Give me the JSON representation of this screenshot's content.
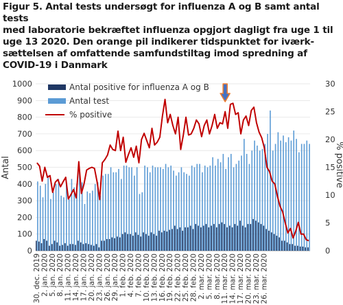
{
  "caption": "Figur 5. Antal tests  undersøgt for influenza A og B samt antal tests\nmed laboratorie bekræftet influenza opgjort dagligt fra uge 1 til\nuge 13 2020. Den orange pil indikerer tidspunktet for iværk-\nsættelsen  af omfattende samfundstiltag imod spredning af\nCOVID-19 i Danmark",
  "colors": {
    "positive_bars": "#1f3864",
    "tests_bars": "#5b9bd5",
    "pct_line": "#c00000",
    "arrow_fill": "#4472c4",
    "arrow_stroke": "#ed7d31"
  },
  "chart_data": {
    "type": "bar",
    "xlabel": "",
    "ylabel": "Antal",
    "y2label": "% positive",
    "ylim": [
      0,
      1000
    ],
    "y2lim": [
      0,
      30
    ],
    "yticks": [
      "0",
      "100",
      "200",
      "300",
      "400",
      "500",
      "600",
      "700",
      "800",
      "900",
      "1000"
    ],
    "y2ticks": [
      "0",
      "5",
      "10",
      "15",
      "20",
      "25",
      "30"
    ],
    "date_labels": [
      "30. dec. 2019",
      "2. jan. 2020",
      "5. jan. 2020",
      "8. jan. 2020",
      "11. jan. 2020",
      "14. jan. 2020",
      "17. jan. 2020",
      "20. jan. 2020",
      "23. jan. 2020",
      "26. jan. 2020",
      "29. jan. 2020",
      "1. feb. 2020",
      "4. feb. 2020",
      "7. feb. 2020",
      "10. feb. 2020",
      "13. feb. 2020",
      "16. feb. 2020",
      "19. feb. 2020",
      "22. feb. 2020",
      "25. feb. 2020",
      "28. feb. 2020",
      "2. mar. 2020",
      "5. mar. 2020",
      "8. mar. 2020",
      "11. mar. 2020",
      "14. mar. 2020",
      "17. mar. 2020",
      "20. mar. 2020",
      "23. mar. 2020",
      "26. mar. 2020"
    ],
    "legend": [
      {
        "key": "positive",
        "label": "Antal positive for influenza A og B"
      },
      {
        "key": "tests",
        "label": "Antal test"
      },
      {
        "key": "pct",
        "label": "% positive"
      }
    ],
    "arrow_label": "11. mar. 2020",
    "series": [
      {
        "name": "Antal positive for influenza A og B",
        "values": [
          60,
          55,
          45,
          70,
          60,
          30,
          40,
          60,
          50,
          30,
          35,
          45,
          30,
          40,
          40,
          35,
          60,
          50,
          40,
          45,
          40,
          35,
          30,
          40,
          20,
          60,
          60,
          70,
          70,
          80,
          75,
          85,
          80,
          100,
          110,
          100,
          100,
          90,
          110,
          95,
          85,
          110,
          100,
          90,
          110,
          100,
          90,
          120,
          110,
          120,
          115,
          125,
          130,
          150,
          130,
          140,
          120,
          140,
          140,
          150,
          130,
          160,
          150,
          140,
          150,
          160,
          140,
          150,
          160,
          140,
          160,
          170,
          160,
          140,
          150,
          140,
          160,
          150,
          180,
          150,
          140,
          160,
          160,
          190,
          180,
          170,
          160,
          150,
          130,
          120,
          110,
          100,
          90,
          80,
          60,
          60,
          50,
          40,
          40,
          30,
          30,
          25,
          25,
          20,
          20
        ]
      },
      {
        "name": "Antal test",
        "values": [
          415,
          390,
          320,
          400,
          450,
          310,
          350,
          400,
          430,
          330,
          320,
          410,
          310,
          430,
          380,
          400,
          470,
          410,
          280,
          355,
          345,
          360,
          400,
          410,
          330,
          450,
          460,
          460,
          500,
          470,
          470,
          490,
          430,
          510,
          510,
          500,
          500,
          450,
          500,
          340,
          350,
          510,
          500,
          470,
          510,
          500,
          500,
          500,
          490,
          520,
          500,
          510,
          480,
          450,
          470,
          500,
          470,
          460,
          450,
          510,
          500,
          520,
          520,
          470,
          510,
          500,
          510,
          560,
          510,
          550,
          530,
          580,
          490,
          560,
          580,
          500,
          520,
          540,
          570,
          670,
          580,
          520,
          600,
          660,
          630,
          600,
          610,
          640,
          700,
          840,
          600,
          640,
          710,
          660,
          690,
          650,
          680,
          660,
          720,
          670,
          590,
          640,
          640,
          660,
          640
        ]
      },
      {
        "name": "% positive",
        "values": [
          15.8,
          15.2,
          12.5,
          15.0,
          13.2,
          13.5,
          10.5,
          12.3,
          12.8,
          11.5,
          12.4,
          13.2,
          9.3,
          10.1,
          11.0,
          9.5,
          16.0,
          10.3,
          12.0,
          14.5,
          14.8,
          15.0,
          14.8,
          12.4,
          9.2,
          15.8,
          16.4,
          17.2,
          19.0,
          18.2,
          18.0,
          21.5,
          18.0,
          20.4,
          15.9,
          17.3,
          18.5,
          16.8,
          18.8,
          15.8,
          20.0,
          21.1,
          19.8,
          18.5,
          22.0,
          19.0,
          19.5,
          20.4,
          24.2,
          27.2,
          23.0,
          24.5,
          22.5,
          21.0,
          24.0,
          18.2,
          20.8,
          24.0,
          20.8,
          21.0,
          22.0,
          23.5,
          22.8,
          20.5,
          22.5,
          23.5,
          21.0,
          22.5,
          24.5,
          22.0,
          23.0,
          22.8,
          25.0,
          22.0,
          26.3,
          26.5,
          24.5,
          24.8,
          21.0,
          23.5,
          24.2,
          22.5,
          25.2,
          25.8,
          23.0,
          21.3,
          20.3,
          18.5,
          15.0,
          14.2,
          12.5,
          12.0,
          9.8,
          8.0,
          7.0,
          5.0,
          3.2,
          4.0,
          2.3,
          3.5,
          5.1,
          3.0,
          3.0,
          2.0,
          1.8
        ]
      }
    ]
  }
}
